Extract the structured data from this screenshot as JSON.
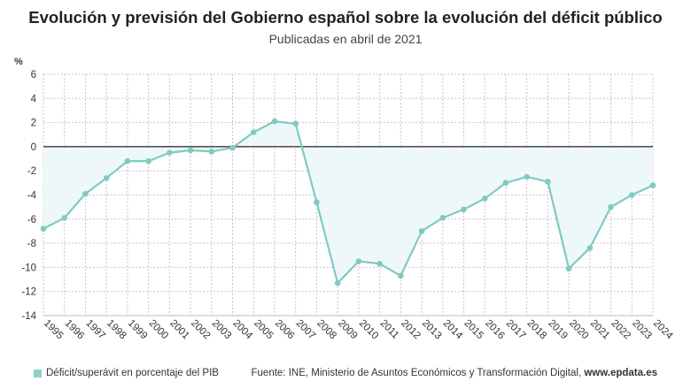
{
  "header": {
    "title": "Evolución y previsión del Gobierno español sobre la evolución del déficit público",
    "subtitle": "Publicadas en abril de 2021"
  },
  "footer": {
    "legend_label": "Déficit/superávit en porcentaje del PIB",
    "source": "Fuente: INE, Ministerio de Asuntos Económicos y Transformación Digital,",
    "source_site": "www.epdata.es"
  },
  "colors": {
    "line": "#7fcbbf",
    "area": "#eef8fb",
    "zero_line": "#444444",
    "grid": "#d9b8dc"
  },
  "chart_data": {
    "type": "area",
    "title": "Evolución y previsión del Gobierno español sobre la evolución del déficit público",
    "subtitle": "Publicadas en abril de 2021",
    "ylabel": "%",
    "xlabel": "",
    "ylim": [
      -14,
      6
    ],
    "yticks": [
      6,
      4,
      2,
      0,
      -2,
      -4,
      -6,
      -8,
      -10,
      -12,
      -14
    ],
    "grid": true,
    "legend": "bottom-left",
    "categories": [
      "1995",
      "1996",
      "1997",
      "1998",
      "1999",
      "2000",
      "2001",
      "2002",
      "2003",
      "2004",
      "2005",
      "2006",
      "2007",
      "2008",
      "2009",
      "2010",
      "2011",
      "2012",
      "2013",
      "2014",
      "2015",
      "2016",
      "2017",
      "2018",
      "2019",
      "2020",
      "2021",
      "2022",
      "2023",
      "2024"
    ],
    "series": [
      {
        "name": "Déficit/superávit en porcentaje del PIB",
        "values": [
          -6.8,
          -5.9,
          -3.9,
          -2.6,
          -1.2,
          -1.2,
          -0.5,
          -0.3,
          -0.4,
          -0.1,
          1.2,
          2.1,
          1.9,
          -4.6,
          -11.3,
          -9.5,
          -9.7,
          -10.7,
          -7.0,
          -5.9,
          -5.2,
          -4.3,
          -3.0,
          -2.5,
          -2.9,
          -10.1,
          -8.4,
          -5.0,
          -4.0,
          -3.2
        ]
      }
    ]
  }
}
